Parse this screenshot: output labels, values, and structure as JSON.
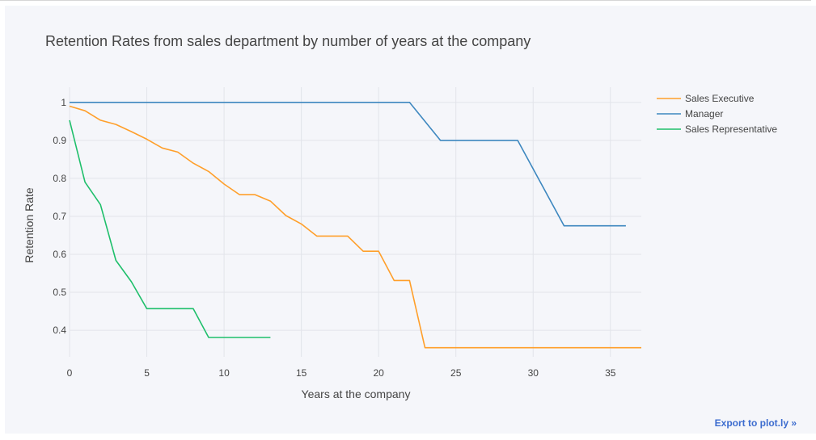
{
  "chart_data": {
    "type": "line",
    "title": "Retention Rates from sales department by number of years at the company",
    "xlabel": "Years at the company",
    "ylabel": "Retention Rate",
    "xlim": [
      0,
      37
    ],
    "ylim": [
      0.33,
      1.04
    ],
    "xticks": [
      0,
      5,
      10,
      15,
      20,
      25,
      30,
      35
    ],
    "yticks": [
      0.4,
      0.5,
      0.6,
      0.7,
      0.8,
      0.9,
      1
    ],
    "grid": true,
    "legend_position": "top-right",
    "series": [
      {
        "name": "Sales Executive",
        "color": "#ff9f2a",
        "x": [
          0,
          1,
          2,
          3,
          4,
          5,
          6,
          7,
          8,
          9,
          10,
          11,
          12,
          13,
          14,
          15,
          16,
          17,
          18,
          19,
          20,
          21,
          22,
          23,
          24,
          25,
          26,
          27,
          28,
          29,
          30,
          31,
          32,
          33,
          34,
          35,
          36,
          37
        ],
        "y": [
          0.99,
          0.978,
          0.953,
          0.942,
          0.923,
          0.903,
          0.88,
          0.869,
          0.84,
          0.818,
          0.785,
          0.757,
          0.757,
          0.74,
          0.702,
          0.68,
          0.648,
          0.648,
          0.648,
          0.608,
          0.608,
          0.531,
          0.531,
          0.354,
          0.354,
          0.354,
          0.354,
          0.354,
          0.354,
          0.354,
          0.354,
          0.354,
          0.354,
          0.354,
          0.354,
          0.354,
          0.354,
          0.354
        ]
      },
      {
        "name": "Manager",
        "color": "#3d87bf",
        "x": [
          0,
          22,
          24,
          29,
          32,
          36
        ],
        "y": [
          1,
          1,
          0.9,
          0.9,
          0.675,
          0.675
        ]
      },
      {
        "name": "Sales Representative",
        "color": "#1fbf6b",
        "x": [
          0,
          1,
          2,
          3,
          4,
          5,
          6,
          7,
          8,
          9,
          10,
          11,
          12,
          13
        ],
        "y": [
          0.953,
          0.79,
          0.731,
          0.584,
          0.528,
          0.457,
          0.457,
          0.457,
          0.457,
          0.381,
          0.381,
          0.381,
          0.381,
          0.381
        ]
      }
    ]
  },
  "export_link": "Export to plot.ly »"
}
